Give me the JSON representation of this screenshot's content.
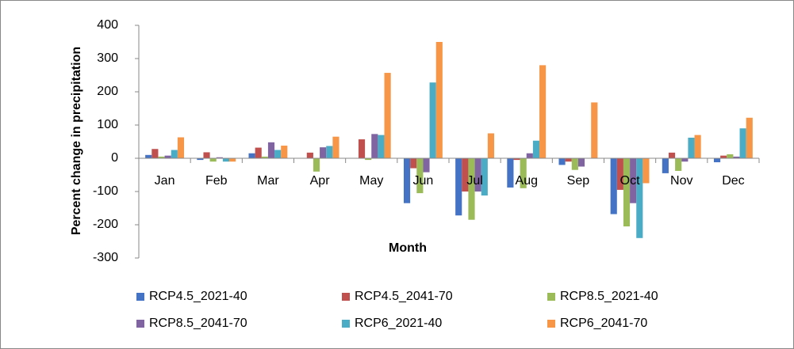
{
  "chart_data": {
    "type": "bar",
    "x_label": "Month",
    "y_label": "Percent change in precipitation",
    "categories": [
      "Jan",
      "Feb",
      "Mar",
      "Apr",
      "May",
      "Jun",
      "Jul",
      "Aug",
      "Sep",
      "Oct",
      "Nov",
      "Dec"
    ],
    "series": [
      {
        "name": "RCP4.5_2021-40",
        "color": "#4472c4",
        "values": [
          10,
          -5,
          15,
          0,
          0,
          -135,
          -172,
          -88,
          -20,
          -168,
          -45,
          -12
        ]
      },
      {
        "name": "RCP4.5_2041-70",
        "color": "#c0504d",
        "values": [
          28,
          18,
          32,
          17,
          57,
          -30,
          -100,
          -5,
          -10,
          -95,
          17,
          8
        ]
      },
      {
        "name": "RCP8.5_2021-40",
        "color": "#9bbb59",
        "values": [
          5,
          -10,
          5,
          -40,
          -5,
          -105,
          -185,
          -90,
          -35,
          -205,
          -38,
          12
        ]
      },
      {
        "name": "RCP8.5_2041-70",
        "color": "#8064a2",
        "values": [
          8,
          3,
          48,
          33,
          73,
          -42,
          -100,
          15,
          -25,
          -135,
          -10,
          5
        ]
      },
      {
        "name": "RCP6_2021-40",
        "color": "#4bacc6",
        "values": [
          25,
          -10,
          25,
          37,
          70,
          228,
          -112,
          53,
          0,
          -240,
          62,
          90
        ]
      },
      {
        "name": "RCP6_2041-70",
        "color": "#f79646",
        "values": [
          63,
          -10,
          38,
          65,
          257,
          350,
          75,
          280,
          168,
          -75,
          70,
          122
        ]
      }
    ],
    "ylim": [
      -300,
      400
    ],
    "yticks": [
      -300,
      -200,
      -100,
      0,
      100,
      200,
      300,
      400
    ],
    "grid": false
  }
}
